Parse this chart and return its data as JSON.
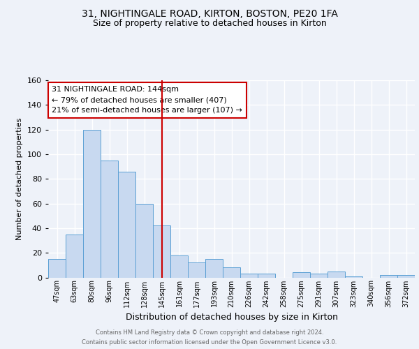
{
  "title1": "31, NIGHTINGALE ROAD, KIRTON, BOSTON, PE20 1FA",
  "title2": "Size of property relative to detached houses in Kirton",
  "xlabel": "Distribution of detached houses by size in Kirton",
  "ylabel": "Number of detached properties",
  "footnote1": "Contains HM Land Registry data © Crown copyright and database right 2024.",
  "footnote2": "Contains public sector information licensed under the Open Government Licence v3.0.",
  "bar_labels": [
    "47sqm",
    "63sqm",
    "80sqm",
    "96sqm",
    "112sqm",
    "128sqm",
    "145sqm",
    "161sqm",
    "177sqm",
    "193sqm",
    "210sqm",
    "226sqm",
    "242sqm",
    "258sqm",
    "275sqm",
    "291sqm",
    "307sqm",
    "323sqm",
    "340sqm",
    "356sqm",
    "372sqm"
  ],
  "bar_values": [
    15,
    35,
    120,
    95,
    86,
    60,
    42,
    18,
    12,
    15,
    8,
    3,
    3,
    0,
    4,
    3,
    5,
    1,
    0,
    2,
    2
  ],
  "bar_color": "#c8d9f0",
  "bar_edgecolor": "#5a9fd4",
  "vline_x": 6.0,
  "vline_color": "#cc0000",
  "annotation_title": "31 NIGHTINGALE ROAD: 144sqm",
  "annotation_line1": "← 79% of detached houses are smaller (407)",
  "annotation_line2": "21% of semi-detached houses are larger (107) →",
  "annotation_box_color": "#ffffff",
  "annotation_box_edgecolor": "#cc0000",
  "ylim": [
    0,
    160
  ],
  "yticks": [
    0,
    20,
    40,
    60,
    80,
    100,
    120,
    140,
    160
  ],
  "bg_color": "#eef2f9",
  "grid_color": "#ffffff",
  "title1_fontsize": 10,
  "title2_fontsize": 9,
  "ann_fontsize": 8,
  "ylabel_fontsize": 8,
  "xlabel_fontsize": 9,
  "xtick_fontsize": 7,
  "ytick_fontsize": 8,
  "footnote_fontsize": 6,
  "footnote_color": "#666666"
}
